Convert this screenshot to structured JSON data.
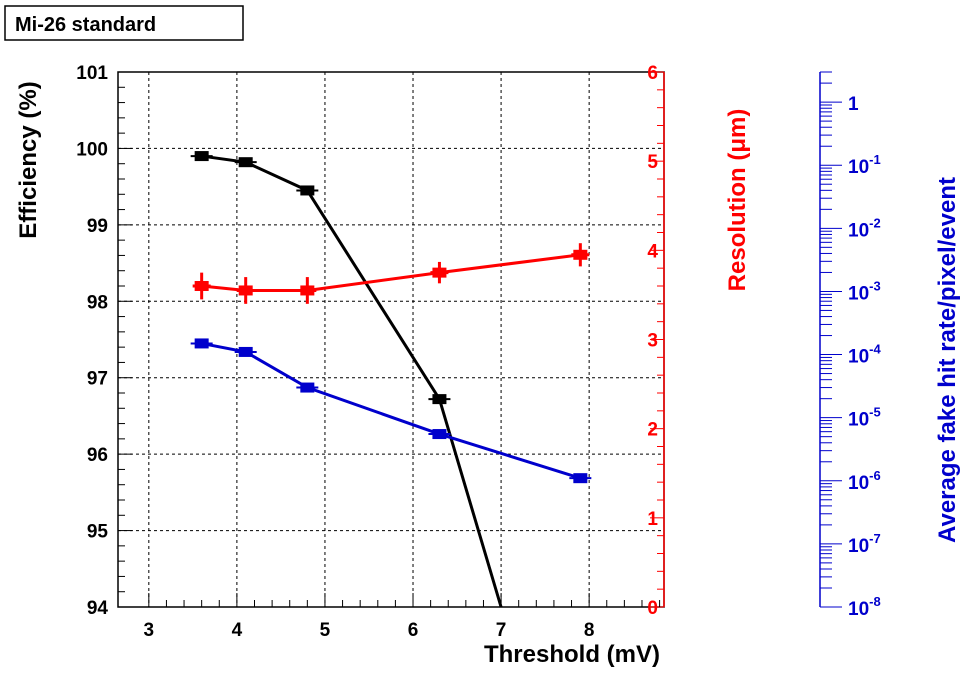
{
  "chart_data": {
    "type": "line",
    "title": "Mi-26 standard",
    "xlabel": "Threshold (mV)",
    "xlim": [
      2.65,
      8.85
    ],
    "xticks": [
      "3",
      "4",
      "5",
      "6",
      "7",
      "8"
    ],
    "grid": true,
    "axes": {
      "left": {
        "label": "Efficiency (%)",
        "ylim": [
          94,
          101
        ],
        "ticks": [
          "94",
          "95",
          "96",
          "97",
          "98",
          "99",
          "100",
          "101"
        ],
        "color": "#000000"
      },
      "right1": {
        "label": "Resolution (μm)",
        "ylim": [
          0,
          6
        ],
        "ticks": [
          "0",
          "1",
          "2",
          "3",
          "4",
          "5",
          "6"
        ],
        "color": "#ff0000"
      },
      "right2": {
        "label": "Average fake hit rate/pixel/event",
        "scale": "log",
        "ylim": [
          1e-08,
          3
        ],
        "ticks": [
          {
            "base": "10",
            "exp": "-8",
            "value": 1e-08
          },
          {
            "base": "10",
            "exp": "-7",
            "value": 1e-07
          },
          {
            "base": "10",
            "exp": "-6",
            "value": 1e-06
          },
          {
            "base": "10",
            "exp": "-5",
            "value": 1e-05
          },
          {
            "base": "10",
            "exp": "-4",
            "value": 0.0001
          },
          {
            "base": "10",
            "exp": "-3",
            "value": 0.001
          },
          {
            "base": "10",
            "exp": "-2",
            "value": 0.01
          },
          {
            "base": "10",
            "exp": "-1",
            "value": 0.1
          },
          {
            "base": "1",
            "exp": "",
            "value": 1
          }
        ],
        "color": "#0000cc"
      }
    },
    "series": [
      {
        "axis": "left",
        "color": "#000000",
        "x": [
          3.6,
          4.1,
          4.8,
          6.3,
          7.0
        ],
        "y": [
          99.9,
          99.82,
          99.45,
          96.72,
          94.0
        ],
        "markers": [
          true,
          true,
          true,
          true,
          false
        ]
      },
      {
        "axis": "right1",
        "color": "#ff0000",
        "x": [
          3.6,
          4.1,
          4.8,
          6.3,
          7.9
        ],
        "y": [
          3.6,
          3.55,
          3.55,
          3.75,
          3.95
        ],
        "yerr": [
          0.15,
          0.15,
          0.15,
          0.12,
          0.13
        ]
      },
      {
        "axis": "right2",
        "color": "#0000cc",
        "x": [
          3.6,
          4.1,
          4.8,
          6.3,
          7.9
        ],
        "y": [
          0.00015,
          0.00011,
          3e-05,
          5.5e-06,
          1.1e-06
        ]
      }
    ]
  }
}
